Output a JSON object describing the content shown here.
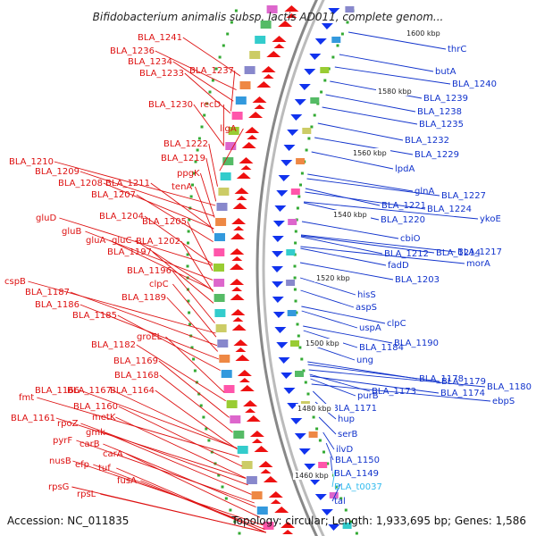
{
  "title": "Bifidobacterium animalis subsp. lactis AD011, complete genom...",
  "footer": {
    "accession": "Accession: NC_011835",
    "topology": "Topology: circular; Length: 1,933,695 bp; Genes: 1,586"
  },
  "colors": {
    "left_labels": "#dd1111",
    "right_labels": "#1133cc",
    "trna_label": "#33bbee",
    "backbone": "#888888",
    "ticks": "#33aa33"
  },
  "kbp_marks": [
    "1600 kbp",
    "1580 kbp",
    "1560 kbp",
    "1540 kbp",
    "1520 kbp",
    "1500 kbp",
    "1480 kbp",
    "1460 kbp"
  ],
  "left_labels": [
    "BLA_1241",
    "BLA_1236",
    "BLA_1234",
    "BLA_1233",
    "BLA_1237",
    "BLA_1230",
    "recD",
    "ligA",
    "BLA_1222",
    "BLA_1219",
    "BLA_1210",
    "ppgK",
    "BLA_1209",
    "BLA_1208",
    "BLA_1211",
    "tenA",
    "BLA_1207",
    "gluD",
    "BLA_1204",
    "gluB",
    "BLA_1205",
    "gluA",
    "gluC",
    "BLA_1202",
    "BLA_1197",
    "cspB",
    "BLA_1196",
    "clpC",
    "BLA_1187",
    "BLA_1189",
    "BLA_1186",
    "BLA_1185",
    "groEL",
    "BLA_1182",
    "BLA_1169",
    "BLA_1168",
    "BLA_1166",
    "BLA_1167",
    "BLA_1164",
    "fmt",
    "BLA_1160",
    "BLA_1161",
    "metK",
    "rpoZ",
    "gmk",
    "pyrF",
    "carB",
    "carA",
    "nusB",
    "efp",
    "tuf",
    "fusA",
    "rpsG",
    "rpsL"
  ],
  "right_labels": [
    "thrC",
    "butA",
    "BLA_1240",
    "BLA_1239",
    "BLA_1238",
    "BLA_1235",
    "BLA_1232",
    "BLA_1229",
    "lpdA",
    "glnA",
    "BLA_1227",
    "BLA_1221",
    "BLA_1224",
    "BLA_1220",
    "ykoE",
    "cbiO",
    "BLA_1212",
    "BLA_1214",
    "BLA_1217",
    "morA",
    "fadD",
    "BLA_1203",
    "hisS",
    "aspS",
    "clpC",
    "uspA",
    "BLA_1184",
    "BLA_1190",
    "ung",
    "BLA_1178",
    "BLA_1179",
    "BLA_1180",
    "BLA_1173",
    "BLA_1174",
    "ebpS",
    "purB",
    "BLA_1171",
    "hup",
    "serB",
    "ilvD",
    "BLA_1150",
    "BLA_1149",
    "BLA_t0037",
    "tal"
  ]
}
